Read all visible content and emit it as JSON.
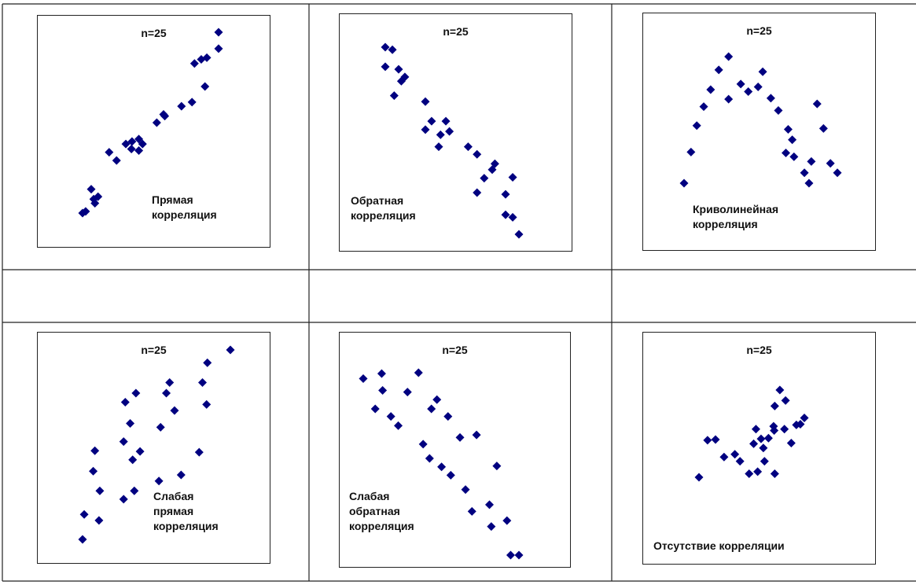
{
  "chart_data": [
    {
      "type": "scatter",
      "n_label": "n=25",
      "caption": "Прямая\nкорреляция",
      "color": "#000080",
      "x": [
        1.0,
        1.5,
        3.0,
        2.8,
        3.5,
        2.4,
        6.5,
        5.3,
        8.0,
        9.0,
        8.9,
        10.1,
        10.7,
        10.1,
        13.0,
        14.1,
        14.3,
        17.0,
        18.7,
        20.8,
        20.2,
        19.1,
        21.1,
        23.0,
        23.0
      ],
      "y": [
        1.0,
        1.2,
        2.2,
        2.7,
        3.0,
        3.9,
        7.4,
        8.4,
        9.4,
        9.7,
        8.8,
        10.0,
        9.4,
        8.6,
        12.0,
        13.0,
        12.8,
        14.0,
        14.5,
        16.4,
        19.7,
        19.2,
        19.9,
        21.0,
        23.0
      ]
    },
    {
      "type": "scatter",
      "n_label": "n=25",
      "caption": "Обратная\nкорреляция",
      "color": "#000080",
      "x": [
        1.0,
        1.8,
        1.0,
        2.5,
        3.2,
        2.8,
        2.0,
        5.5,
        6.2,
        5.5,
        7.8,
        7.2,
        8.2,
        7.0,
        10.3,
        11.3,
        12.1,
        13.3,
        13.0,
        11.3,
        15.3,
        14.5,
        14.5,
        15.3,
        16.0
      ],
      "y": [
        23.0,
        22.7,
        20.7,
        20.4,
        19.5,
        19.0,
        17.3,
        16.6,
        14.3,
        13.3,
        14.3,
        12.7,
        13.1,
        11.3,
        11.3,
        10.4,
        7.6,
        9.3,
        8.6,
        5.9,
        7.7,
        5.7,
        3.3,
        3.0,
        1.0
      ],
      "ylim": [
        -1.5,
        26
      ]
    },
    {
      "type": "scatter",
      "n_label": "n=25",
      "caption": "Криволинейная\nкорреляция",
      "color": "#000080",
      "x": [
        1.0,
        2.2,
        3.2,
        4.4,
        5.6,
        7.0,
        8.7,
        10.8,
        8.7,
        12.1,
        13.8,
        14.6,
        16.0,
        17.3,
        19.0,
        19.7,
        18.6,
        20.0,
        21.8,
        22.6,
        23.0,
        24.0,
        25.1,
        26.3,
        27.5
      ],
      "y": [
        1.0,
        4.3,
        7.1,
        9.1,
        10.9,
        13.0,
        14.4,
        11.5,
        9.9,
        10.7,
        11.2,
        12.8,
        10.0,
        8.7,
        6.7,
        5.6,
        4.2,
        3.8,
        2.1,
        1.0,
        3.3,
        9.4,
        6.8,
        3.1,
        2.1
      ]
    },
    {
      "type": "scatter",
      "n_label": "n=25",
      "caption": "Слабая\nпрямая\nкорреляция",
      "color": "#000080",
      "x": [
        1.0,
        1.2,
        3.0,
        3.1,
        2.3,
        2.5,
        6.0,
        6.0,
        6.8,
        6.2,
        7.5,
        8.0,
        7.1,
        7.3,
        10.3,
        10.5,
        12.2,
        13.0,
        11.2,
        11.6,
        15.2,
        16.1,
        15.6,
        16.2,
        19.0
      ],
      "y": [
        1.7,
        5.0,
        4.2,
        8.1,
        10.7,
        13.4,
        7.0,
        14.6,
        17.0,
        19.8,
        21.0,
        13.3,
        12.2,
        8.1,
        9.4,
        16.5,
        18.7,
        10.2,
        21.0,
        22.4,
        13.2,
        19.5,
        22.4,
        25.0,
        26.7
      ],
      "ylim": [
        -1.5,
        30
      ]
    },
    {
      "type": "scatter",
      "n_label": "n=25",
      "caption": "Слабая\nобратная\nкорреляция",
      "color": "#000080",
      "x": [
        1.0,
        3.0,
        3.1,
        2.3,
        4.0,
        4.8,
        5.8,
        7.0,
        8.4,
        9.0,
        7.5,
        8.2,
        9.5,
        10.5,
        10.2,
        11.5,
        12.1,
        13.3,
        12.8,
        14.7,
        14.9,
        15.5,
        16.6,
        17.0,
        17.9
      ],
      "y": [
        22.0,
        22.6,
        20.6,
        18.4,
        17.5,
        16.4,
        20.4,
        22.7,
        18.4,
        19.5,
        14.2,
        12.5,
        11.5,
        10.5,
        17.5,
        15.0,
        8.8,
        15.3,
        6.2,
        7.0,
        4.4,
        11.6,
        5.1,
        1.0,
        1.0
      ]
    },
    {
      "type": "scatter",
      "n_label": "n=25",
      "caption": "Отсутствие корреляции",
      "color": "#000080",
      "x": [
        1.0,
        2.5,
        3.9,
        5.4,
        7.3,
        8.2,
        9.8,
        11.3,
        12.5,
        12.3,
        10.6,
        11.0,
        11.9,
        13.2,
        14.2,
        14.3,
        14.1,
        14.3,
        15.2,
        16.2,
        16.0,
        17.2,
        18.1,
        18.8,
        19.5
      ],
      "y": [
        1.0,
        6.3,
        6.4,
        3.9,
        4.3,
        3.3,
        1.5,
        1.8,
        3.3,
        5.2,
        5.8,
        7.9,
        6.5,
        6.6,
        7.7,
        1.5,
        8.3,
        11.2,
        13.5,
        12.0,
        7.9,
        5.9,
        8.5,
        8.6,
        9.5
      ],
      "ylim": [
        -1.5,
        18
      ]
    }
  ]
}
